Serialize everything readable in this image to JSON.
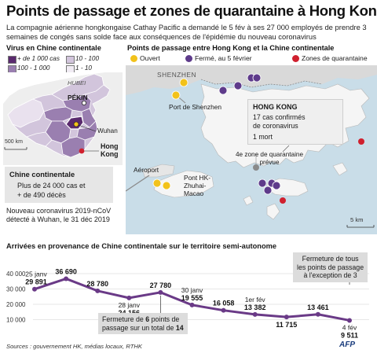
{
  "title": "Points de passage et zones de quarantaine à Hong Kong",
  "subtitle": "La compagnie aérienne hongkongaise Cathay Pacific a demandé le 5 fév à ses 27 000 employés de prendre 3 semaines de congés sans solde face aux conséquences de l'épidémie du nouveau coronavirus",
  "china_map": {
    "heading": "Virus en Chine continentale",
    "legend": [
      {
        "label": "+ de 1 000 cas",
        "color": "#5a2a6e"
      },
      {
        "label": "10 - 100",
        "color": "#d2c5dc"
      },
      {
        "label": "100 - 1 000",
        "color": "#9a7fb0"
      },
      {
        "label": "1 - 10",
        "color": "#f1ecf4"
      }
    ],
    "labels": {
      "hubei": "HUBEI",
      "pekin": "PÉKIN",
      "wuhan": "Wuhan",
      "hongkong": "Hong\nKong"
    },
    "scale": "500 km"
  },
  "china_summary": {
    "title": "Chine continentale",
    "line1": "Plus de 24 000 cas et",
    "line2": "+ de 490 décès"
  },
  "virus_note": {
    "line1": "Nouveau coronavirus 2019-nCoV",
    "line2": "détecté à Wuhan, le 31 déc 2019"
  },
  "hk_map": {
    "heading": "Points de passage entre Hong Kong et la Chine continentale",
    "legend": [
      {
        "label": "Ouvert",
        "color": "#f2c21b"
      },
      {
        "label": "Fermé, au 5 février",
        "color": "#5e3b8b"
      },
      {
        "label": "Zones de quarantaine",
        "color": "#d0202e"
      }
    ],
    "shenzhen": "SHENZHEN",
    "port_shenzhen": "Port de Shenzhen",
    "aeroport": "Aéroport",
    "pont": "Pont HK-\nZhuhai-\nMacao",
    "quarantine_zone": "4e zone de quarantaine\nprévue",
    "hk_box": {
      "title": "HONG KONG",
      "line1": "17 cas confirmés",
      "line2": "de coronavirus",
      "line3": "1 mort"
    },
    "scale": "5 km"
  },
  "arrivals": {
    "heading": "Arrivées en provenance de Chine continentale sur le territoire semi-autonome",
    "note_left": "Fermeture de 6 points de\npassage sur un total de 14",
    "note_right": "Fermeture de tous\nles points de passage\nà l'exception de 3"
  },
  "chart_data": {
    "type": "line",
    "title": "Arrivées en provenance de Chine continentale sur le territoire semi-autonome",
    "xlabel": "",
    "ylabel": "",
    "ylim": [
      0,
      40000
    ],
    "yticks": [
      "40 000",
      "30 000",
      "20 000",
      "10 000"
    ],
    "grid": true,
    "series": [
      {
        "values": [
          29891,
          36690,
          28780,
          24156,
          27780,
          19555,
          16058,
          13382,
          11715,
          13461,
          9511
        ],
        "value_labels": [
          "29 891",
          "36 690",
          "28 780",
          "24 156",
          "27 780",
          "19 555",
          "16 058",
          "13 382",
          "11 715",
          "13 461",
          "9 511"
        ],
        "date_labels": [
          "25 janv",
          "",
          "",
          "28 janv",
          "",
          "30 janv",
          "",
          "1er fév",
          "",
          "",
          "4 fév"
        ]
      }
    ],
    "color": "#6a3a87"
  },
  "source": "Sources : gouvernement HK, médias locaux, RTHK",
  "credit": "AFP"
}
